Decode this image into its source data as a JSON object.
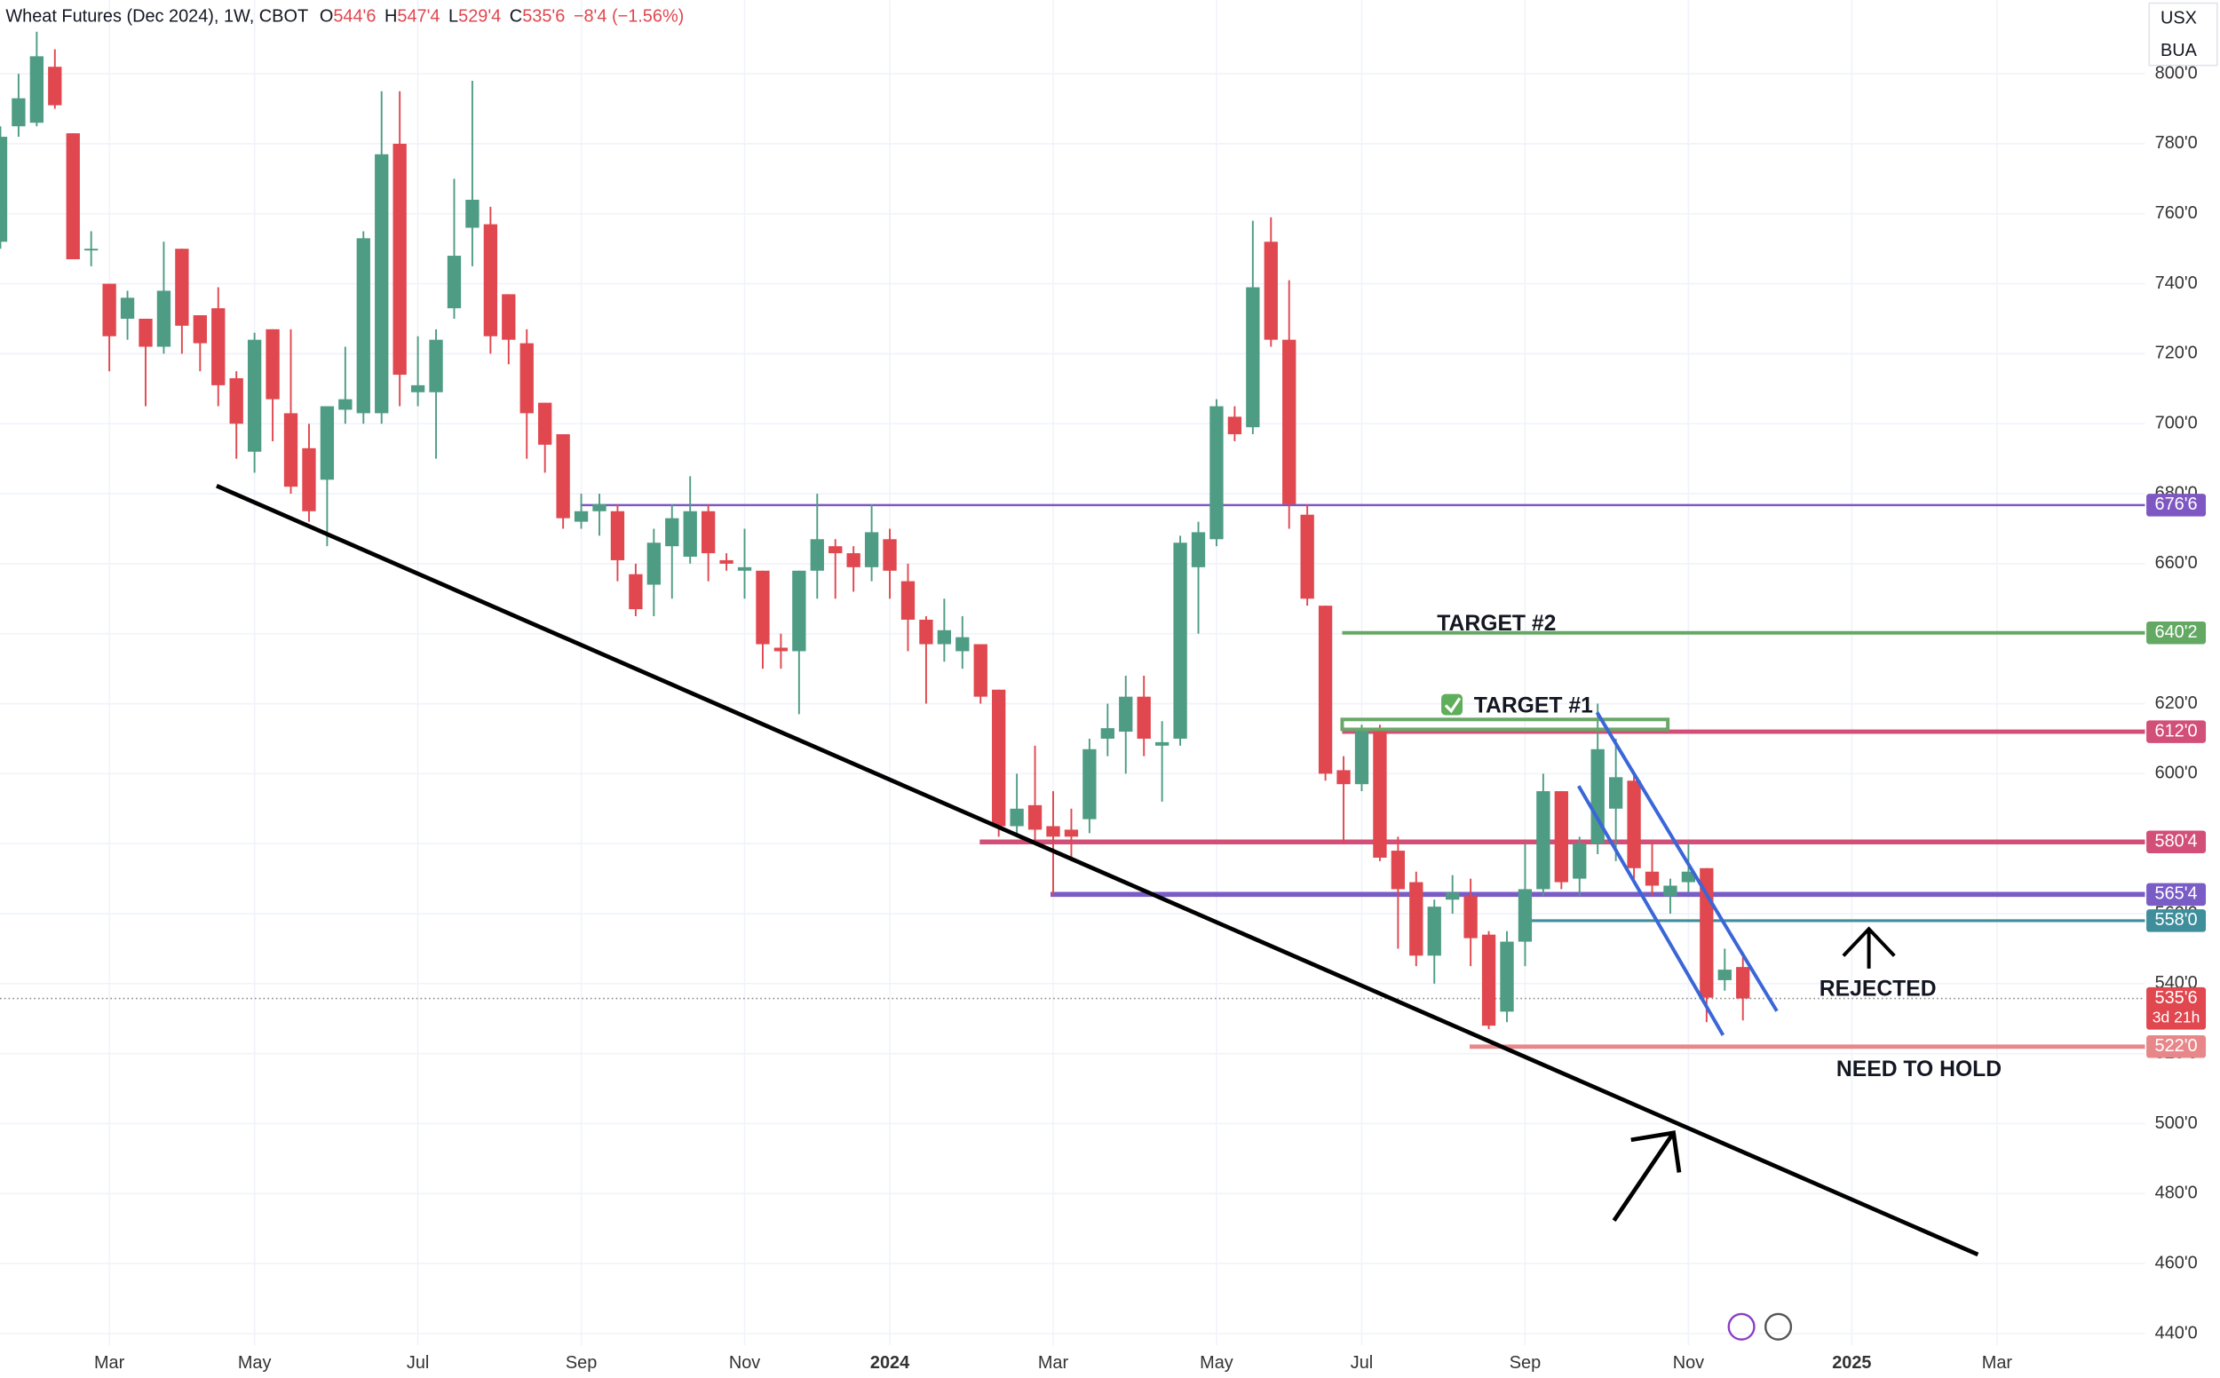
{
  "header": {
    "title": "Wheat Futures (Dec 2024), 1W, CBOT",
    "quote": [
      {
        "key": "O",
        "value": "544'6"
      },
      {
        "key": "H",
        "value": "547'4"
      },
      {
        "key": "L",
        "value": "529'4"
      },
      {
        "key": "C",
        "value": "535'6"
      }
    ],
    "change": "−8'4 (−1.56%)",
    "units": [
      "USX",
      "BUA"
    ]
  },
  "chart_data": {
    "type": "candlestick",
    "grid": true,
    "up_color": "#4e9c84",
    "down_color": "#e0474f",
    "categories": [
      null,
      null,
      null,
      null,
      null,
      null,
      "Mar",
      null,
      null,
      null,
      null,
      null,
      null,
      null,
      "May",
      null,
      null,
      null,
      null,
      null,
      null,
      null,
      null,
      "Jul",
      null,
      null,
      null,
      null,
      null,
      null,
      null,
      null,
      "Sep",
      null,
      null,
      null,
      null,
      null,
      null,
      null,
      null,
      "Nov",
      null,
      null,
      null,
      null,
      null,
      null,
      null,
      "2024",
      null,
      null,
      null,
      null,
      null,
      null,
      null,
      null,
      "Mar",
      null,
      null,
      null,
      null,
      null,
      null,
      null,
      null,
      "May",
      null,
      null,
      null,
      null,
      null,
      null,
      null,
      "Jul",
      null,
      null,
      null,
      null,
      null,
      null,
      null,
      null,
      "Sep",
      null,
      null,
      null,
      null,
      null,
      null,
      null,
      null,
      "Nov",
      null,
      null,
      null,
      null,
      null,
      null,
      null,
      null,
      "2025",
      null,
      null,
      null,
      null,
      null,
      null,
      null,
      "Mar"
    ],
    "open": [
      752,
      785,
      786,
      802,
      783,
      750,
      740,
      730,
      730,
      722,
      750,
      731,
      733,
      713,
      692,
      727,
      703,
      693,
      684,
      704,
      703,
      703,
      780,
      709,
      709,
      733,
      756,
      757,
      737,
      723,
      706,
      697,
      672,
      675,
      675,
      657,
      654,
      665,
      662,
      675,
      661,
      658,
      658,
      636,
      635,
      658,
      665,
      663,
      659,
      667,
      655,
      644,
      637,
      635,
      637,
      624,
      585,
      591,
      585,
      584,
      587,
      610,
      612,
      622,
      608,
      610,
      659,
      667,
      702,
      699,
      752,
      724,
      674,
      648,
      601,
      597,
      613,
      578,
      569,
      548,
      564,
      565,
      554,
      532,
      552,
      567,
      595,
      570,
      580,
      590,
      598,
      572,
      565,
      569,
      573,
      541,
      544.75,
      null,
      null,
      null,
      null,
      null,
      null,
      null,
      null,
      null,
      null,
      null,
      null,
      null,
      null
    ],
    "high": [
      785,
      800,
      812,
      807,
      783,
      755,
      740,
      738,
      730,
      752,
      750,
      731,
      739,
      715,
      726,
      727,
      727,
      700,
      705,
      722,
      755,
      795,
      795,
      725,
      727,
      770,
      798,
      762,
      737,
      727,
      706,
      697,
      680,
      680,
      677,
      660,
      670,
      677,
      685,
      677,
      663,
      670,
      658,
      640,
      658,
      680,
      667,
      665,
      677,
      670,
      660,
      645,
      650,
      645,
      637,
      624,
      600,
      608,
      595,
      590,
      610,
      620,
      628,
      628,
      615,
      668,
      672,
      707,
      705,
      758,
      759,
      741,
      677,
      648,
      605,
      614,
      614,
      582,
      572,
      564,
      571,
      570,
      555,
      555,
      580,
      600,
      595,
      582,
      620,
      610,
      600,
      580,
      570,
      580,
      573,
      550,
      547.5,
      null,
      null,
      null,
      null,
      null,
      null,
      null,
      null,
      null,
      null,
      null,
      null,
      null,
      null
    ],
    "low": [
      750,
      782,
      785,
      790,
      747,
      745,
      715,
      724,
      705,
      720,
      720,
      715,
      705,
      690,
      686,
      695,
      680,
      672,
      665,
      700,
      700,
      700,
      705,
      705,
      690,
      730,
      745,
      720,
      717,
      690,
      686,
      670,
      670,
      668,
      655,
      645,
      645,
      650,
      660,
      655,
      658,
      650,
      630,
      630,
      617,
      650,
      650,
      652,
      655,
      650,
      635,
      620,
      632,
      630,
      620,
      582,
      582,
      580,
      565,
      575,
      583,
      605,
      600,
      605,
      592,
      608,
      640,
      665,
      695,
      697,
      722,
      670,
      648,
      598,
      580,
      595,
      575,
      550,
      545,
      540,
      560,
      545,
      527,
      529,
      545,
      565,
      567,
      565,
      577,
      575,
      570,
      565,
      560,
      566,
      529,
      538,
      529.5,
      null,
      null,
      null,
      null,
      null,
      null,
      null,
      null,
      null,
      null,
      null,
      null,
      null,
      null
    ],
    "close": [
      782,
      793,
      805,
      791,
      747,
      750,
      725,
      736,
      722,
      738,
      728,
      723,
      711,
      700,
      724,
      707,
      682,
      675,
      705,
      707,
      753,
      777,
      714,
      711,
      724,
      748,
      764,
      725,
      724,
      703,
      694,
      673,
      675,
      677,
      661,
      647,
      666,
      673,
      675,
      663,
      660,
      659,
      637,
      635,
      658,
      667,
      663,
      659,
      669,
      658,
      644,
      637,
      641,
      639,
      622,
      585,
      590,
      584,
      582,
      582,
      607,
      613,
      622,
      610,
      609,
      666,
      669,
      705,
      697,
      739,
      724,
      677,
      650,
      600,
      597,
      613,
      576,
      567,
      548,
      562,
      566,
      553,
      528,
      552,
      567,
      595,
      569,
      580,
      607,
      599,
      573,
      568,
      568,
      572,
      536,
      544,
      535.75,
      null,
      null,
      null,
      null,
      null,
      null,
      null,
      null,
      null,
      null,
      null,
      null,
      null,
      null
    ],
    "ylim": [
      436.7,
      821
    ],
    "yticks": [
      {
        "value": 440,
        "label": "440'0"
      },
      {
        "value": 460,
        "label": "460'0"
      },
      {
        "value": 480,
        "label": "480'0"
      },
      {
        "value": 500,
        "label": "500'0"
      },
      {
        "value": 520,
        "label": "520'0"
      },
      {
        "value": 540,
        "label": "540'0"
      },
      {
        "value": 560,
        "label": "560'0"
      },
      {
        "value": 580,
        "label": "580'0"
      },
      {
        "value": 600,
        "label": "600'0"
      },
      {
        "value": 620,
        "label": "620'0"
      },
      {
        "value": 640,
        "label": "640'0"
      },
      {
        "value": 660,
        "label": "660'0"
      },
      {
        "value": 680,
        "label": "680'0"
      },
      {
        "value": 700,
        "label": "700'0"
      },
      {
        "value": 720,
        "label": "720'0"
      },
      {
        "value": 740,
        "label": "740'0"
      },
      {
        "value": 760,
        "label": "760'0"
      },
      {
        "value": 780,
        "label": "780'0"
      },
      {
        "value": 800,
        "label": "800'0"
      }
    ],
    "levels": [
      {
        "value": 676.75,
        "label": "676'6",
        "color": "#7e57c2"
      },
      {
        "value": 640.25,
        "label": "640'2",
        "color": "#63a863"
      },
      {
        "value": 612,
        "label": "612'0",
        "color": "#d24f78"
      },
      {
        "value": 580.5,
        "label": "580'4",
        "color": "#d24f78"
      },
      {
        "value": 565.5,
        "label": "565'4",
        "color": "#7a5cc6"
      },
      {
        "value": 558,
        "label": "558'0",
        "color": "#3e8e9b"
      },
      {
        "value": 535.75,
        "label": "535'6",
        "color": "#e0474f",
        "countdown": "3d 21h"
      },
      {
        "value": 522,
        "label": "522'0",
        "color": "#e8878a"
      }
    ],
    "annotations": [
      "TARGET #2",
      "TARGET #1",
      "REJECTED",
      "NEED TO HOLD"
    ]
  }
}
